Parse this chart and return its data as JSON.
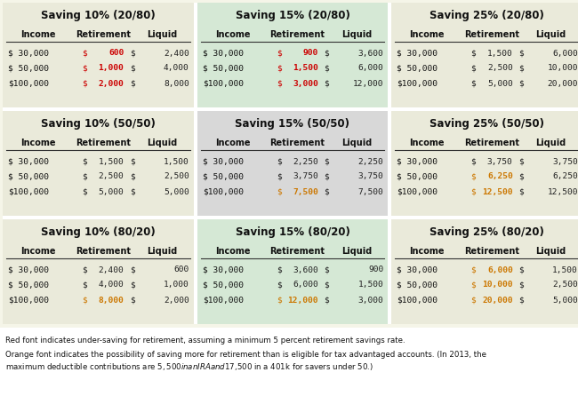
{
  "panels": [
    {
      "title": "Saving 10% (20/80)",
      "bg": "#eaeada",
      "row": 0,
      "col": 0,
      "rows": [
        {
          "income": "$ 30,000",
          "ret_val": "600",
          "ret_color": "#cc0000",
          "liq_val": "2,400",
          "liq_color": "#222222"
        },
        {
          "income": "$ 50,000",
          "ret_val": "1,000",
          "ret_color": "#cc0000",
          "liq_val": "4,000",
          "liq_color": "#222222"
        },
        {
          "income": "$100,000",
          "ret_val": "2,000",
          "ret_color": "#cc0000",
          "liq_val": "8,000",
          "liq_color": "#222222"
        }
      ]
    },
    {
      "title": "Saving 15% (20/80)",
      "bg": "#d5e8d5",
      "row": 0,
      "col": 1,
      "rows": [
        {
          "income": "$ 30,000",
          "ret_val": "900",
          "ret_color": "#cc0000",
          "liq_val": "3,600",
          "liq_color": "#222222"
        },
        {
          "income": "$ 50,000",
          "ret_val": "1,500",
          "ret_color": "#cc0000",
          "liq_val": "6,000",
          "liq_color": "#222222"
        },
        {
          "income": "$100,000",
          "ret_val": "3,000",
          "ret_color": "#cc0000",
          "liq_val": "12,000",
          "liq_color": "#222222"
        }
      ]
    },
    {
      "title": "Saving 25% (20/80)",
      "bg": "#eaeada",
      "row": 0,
      "col": 2,
      "rows": [
        {
          "income": "$ 30,000",
          "ret_val": "1,500",
          "ret_color": "#222222",
          "liq_val": "6,000",
          "liq_color": "#222222"
        },
        {
          "income": "$ 50,000",
          "ret_val": "2,500",
          "ret_color": "#222222",
          "liq_val": "10,000",
          "liq_color": "#222222"
        },
        {
          "income": "$100,000",
          "ret_val": "5,000",
          "ret_color": "#222222",
          "liq_val": "20,000",
          "liq_color": "#222222"
        }
      ]
    },
    {
      "title": "Saving 10% (50/50)",
      "bg": "#eaeada",
      "row": 1,
      "col": 0,
      "rows": [
        {
          "income": "$ 30,000",
          "ret_val": "1,500",
          "ret_color": "#222222",
          "liq_val": "1,500",
          "liq_color": "#222222"
        },
        {
          "income": "$ 50,000",
          "ret_val": "2,500",
          "ret_color": "#222222",
          "liq_val": "2,500",
          "liq_color": "#222222"
        },
        {
          "income": "$100,000",
          "ret_val": "5,000",
          "ret_color": "#222222",
          "liq_val": "5,000",
          "liq_color": "#222222"
        }
      ]
    },
    {
      "title": "Saving 15% (50/50)",
      "bg": "#d8d8d8",
      "row": 1,
      "col": 1,
      "rows": [
        {
          "income": "$ 30,000",
          "ret_val": "2,250",
          "ret_color": "#222222",
          "liq_val": "2,250",
          "liq_color": "#222222"
        },
        {
          "income": "$ 50,000",
          "ret_val": "3,750",
          "ret_color": "#222222",
          "liq_val": "3,750",
          "liq_color": "#222222"
        },
        {
          "income": "$100,000",
          "ret_val": "7,500",
          "ret_color": "#cc7700",
          "liq_val": "7,500",
          "liq_color": "#222222"
        }
      ]
    },
    {
      "title": "Saving 25% (50/50)",
      "bg": "#eaeada",
      "row": 1,
      "col": 2,
      "rows": [
        {
          "income": "$ 30,000",
          "ret_val": "3,750",
          "ret_color": "#222222",
          "liq_val": "3,750",
          "liq_color": "#222222"
        },
        {
          "income": "$ 50,000",
          "ret_val": "6,250",
          "ret_color": "#cc7700",
          "liq_val": "6,250",
          "liq_color": "#222222"
        },
        {
          "income": "$100,000",
          "ret_val": "12,500",
          "ret_color": "#cc7700",
          "liq_val": "12,500",
          "liq_color": "#222222"
        }
      ]
    },
    {
      "title": "Saving 10% (80/20)",
      "bg": "#eaeada",
      "row": 2,
      "col": 0,
      "rows": [
        {
          "income": "$ 30,000",
          "ret_val": "2,400",
          "ret_color": "#222222",
          "liq_val": "600",
          "liq_color": "#222222"
        },
        {
          "income": "$ 50,000",
          "ret_val": "4,000",
          "ret_color": "#222222",
          "liq_val": "1,000",
          "liq_color": "#222222"
        },
        {
          "income": "$100,000",
          "ret_val": "8,000",
          "ret_color": "#cc7700",
          "liq_val": "2,000",
          "liq_color": "#222222"
        }
      ]
    },
    {
      "title": "Saving 15% (80/20)",
      "bg": "#d5e8d5",
      "row": 2,
      "col": 1,
      "rows": [
        {
          "income": "$ 30,000",
          "ret_val": "3,600",
          "ret_color": "#222222",
          "liq_val": "900",
          "liq_color": "#222222"
        },
        {
          "income": "$ 50,000",
          "ret_val": "6,000",
          "ret_color": "#222222",
          "liq_val": "1,500",
          "liq_color": "#222222"
        },
        {
          "income": "$100,000",
          "ret_val": "12,000",
          "ret_color": "#cc7700",
          "liq_val": "3,000",
          "liq_color": "#222222"
        }
      ]
    },
    {
      "title": "Saving 25% (80/20)",
      "bg": "#eaeada",
      "row": 2,
      "col": 2,
      "rows": [
        {
          "income": "$ 30,000",
          "ret_val": "6,000",
          "ret_color": "#cc7700",
          "liq_val": "1,500",
          "liq_color": "#222222"
        },
        {
          "income": "$ 50,000",
          "ret_val": "10,000",
          "ret_color": "#cc7700",
          "liq_val": "2,500",
          "liq_color": "#222222"
        },
        {
          "income": "$100,000",
          "ret_val": "20,000",
          "ret_color": "#cc7700",
          "liq_val": "5,000",
          "liq_color": "#222222"
        }
      ]
    }
  ],
  "footer_line1": "Red font indicates under-saving for retirement, assuming a minimum 5 percent retirement savings rate.",
  "footer_line2": "Orange font indicates the possibility of saving more for retirement than is eligible for tax advantaged accounts. (In 2013, the",
  "footer_line3": "maximum deductible contributions are $5,500 in an IRA and $17,500 in a 401k for savers under 50.)",
  "fig_bg": "#f5f5e8",
  "panel_bg_default": "#eaeada",
  "white_gap": "#ffffff"
}
